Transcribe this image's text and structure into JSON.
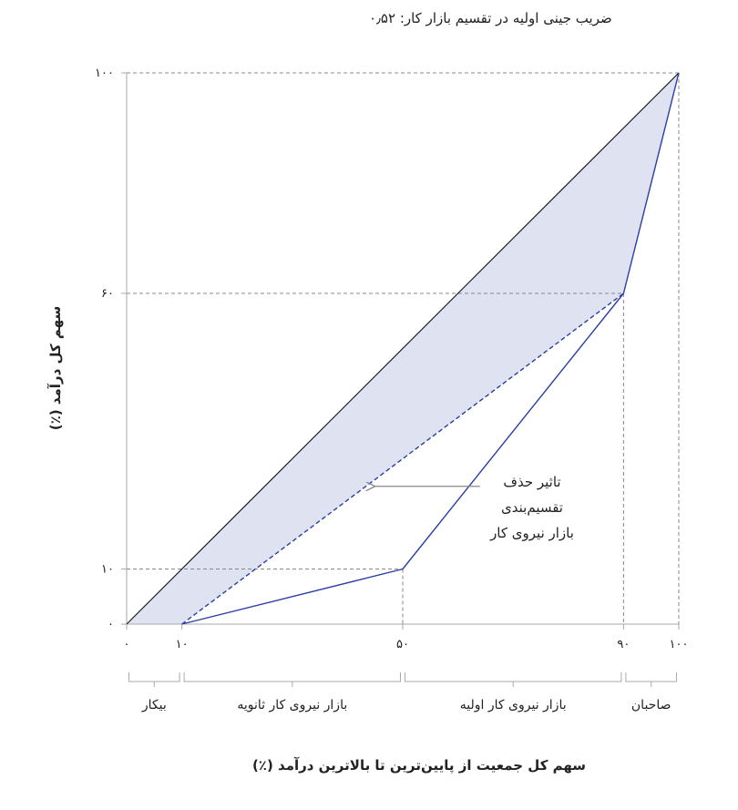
{
  "chart_data": {
    "type": "line",
    "title": "",
    "subtitle": "ضریب جینی اولیه در تقسیم بازار کار: ۰٫۵۲",
    "xlabel": "سهم کل جمعیت از پایین‌ترین تا بالاترین درآمد (٪)",
    "ylabel": "سهم کل درآمد (٪)",
    "xlim": [
      0,
      100
    ],
    "ylim": [
      0,
      100
    ],
    "x_ticks": [
      {
        "value": 0,
        "label": "۰"
      },
      {
        "value": 10,
        "label": "۱۰"
      },
      {
        "value": 50,
        "label": "۵۰"
      },
      {
        "value": 90,
        "label": "۹۰"
      },
      {
        "value": 100,
        "label": "۱۰۰"
      }
    ],
    "y_ticks": [
      {
        "value": 0,
        "label": "۰"
      },
      {
        "value": 10,
        "label": "۱۰"
      },
      {
        "value": 60,
        "label": "۶۰"
      },
      {
        "value": 100,
        "label": "۱۰۰"
      }
    ],
    "series": [
      {
        "style": "equality-line",
        "color": "#111111",
        "points": [
          [
            0,
            0
          ],
          [
            100,
            100
          ]
        ]
      },
      {
        "style": "solid",
        "color": "#2b3ea3",
        "points": [
          [
            10,
            0
          ],
          [
            50,
            10
          ],
          [
            90,
            60
          ],
          [
            100,
            100
          ]
        ]
      },
      {
        "style": "dashed",
        "color": "#2b3ea3",
        "points": [
          [
            10,
            0
          ],
          [
            90,
            60
          ]
        ]
      }
    ],
    "shaded_area": {
      "color": "#dfe2f1"
    },
    "groups": [
      {
        "from": 0,
        "to": 10,
        "label": "بیکار"
      },
      {
        "from": 10,
        "to": 50,
        "label": "بازار نیروی کار ثانویه"
      },
      {
        "from": 50,
        "to": 90,
        "label": "بازار نیروی کار اولیه"
      },
      {
        "from": 90,
        "to": 100,
        "label": "صاحبان"
      }
    ],
    "annotation": {
      "lines": [
        "تاثیر حذف",
        "تقسیم‌بندی",
        "بازار نیروی کار"
      ],
      "arrow_from": [
        64,
        25
      ],
      "arrow_to": [
        45,
        25
      ]
    },
    "grid": false
  }
}
